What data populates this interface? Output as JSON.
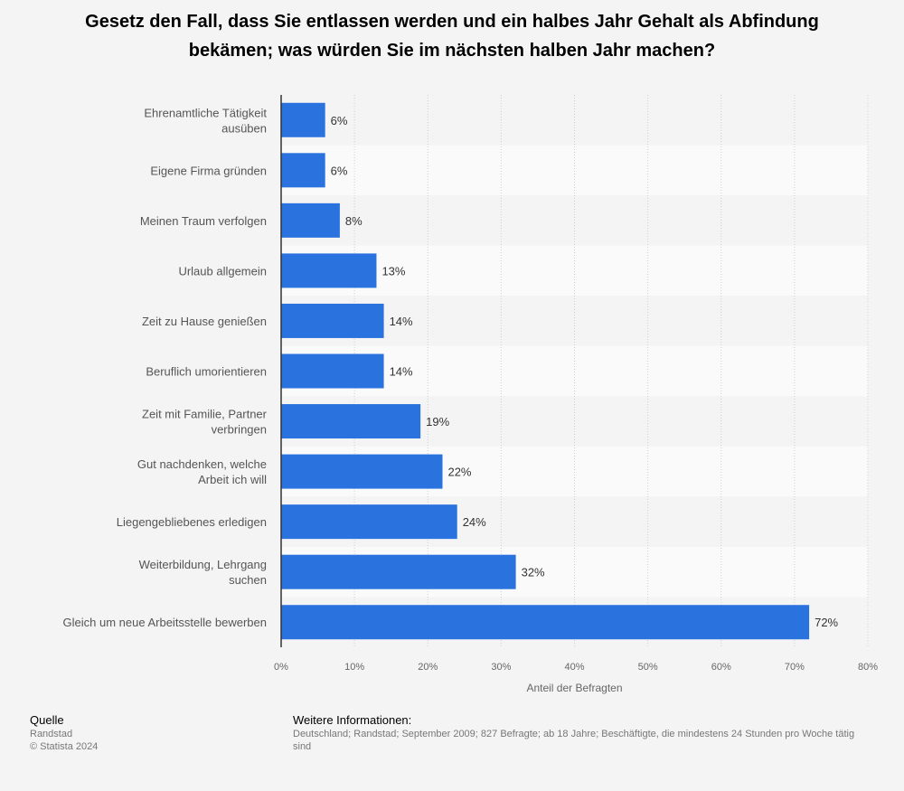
{
  "title_line1": "Gesetz den Fall, dass Sie entlassen werden und ein halbes Jahr Gehalt als Abfindung",
  "title_line2": "bekämen; was würden Sie im nächsten halben Jahr machen?",
  "chart_data": {
    "type": "bar",
    "orientation": "horizontal",
    "categories": [
      [
        "Ehrenamtliche Tätigkeit",
        "ausüben"
      ],
      [
        "Eigene Firma gründen"
      ],
      [
        "Meinen Traum verfolgen"
      ],
      [
        "Urlaub allgemein"
      ],
      [
        "Zeit zu Hause genießen"
      ],
      [
        "Beruflich umorientieren"
      ],
      [
        "Zeit mit Familie, Partner",
        "verbringen"
      ],
      [
        "Gut nachdenken, welche",
        "Arbeit ich will"
      ],
      [
        "Liegengebliebenes erledigen"
      ],
      [
        "Weiterbildung, Lehrgang",
        "suchen"
      ],
      [
        "Gleich um neue Arbeitsstelle bewerben"
      ]
    ],
    "values": [
      6,
      6,
      8,
      13,
      14,
      14,
      19,
      22,
      24,
      32,
      72
    ],
    "value_labels": [
      "6%",
      "6%",
      "8%",
      "13%",
      "14%",
      "14%",
      "19%",
      "22%",
      "24%",
      "32%",
      "72%"
    ],
    "xticks": [
      "0%",
      "10%",
      "20%",
      "30%",
      "40%",
      "50%",
      "60%",
      "70%",
      "80%"
    ],
    "xlim": [
      0,
      80
    ],
    "xlabel": "Anteil der Befragten",
    "bar_color": "#2a73de",
    "grid": true
  },
  "footer": {
    "source_heading": "Quelle",
    "source_name": "Randstad",
    "copyright": "© Statista 2024",
    "info_heading": "Weitere Informationen:",
    "info_line1": "Deutschland; Randstad; September 2009; 827 Befragte; ab 18 Jahre; Beschäftigte, die mindestens 24 Stunden pro Woche tätig",
    "info_line2": "sind"
  }
}
